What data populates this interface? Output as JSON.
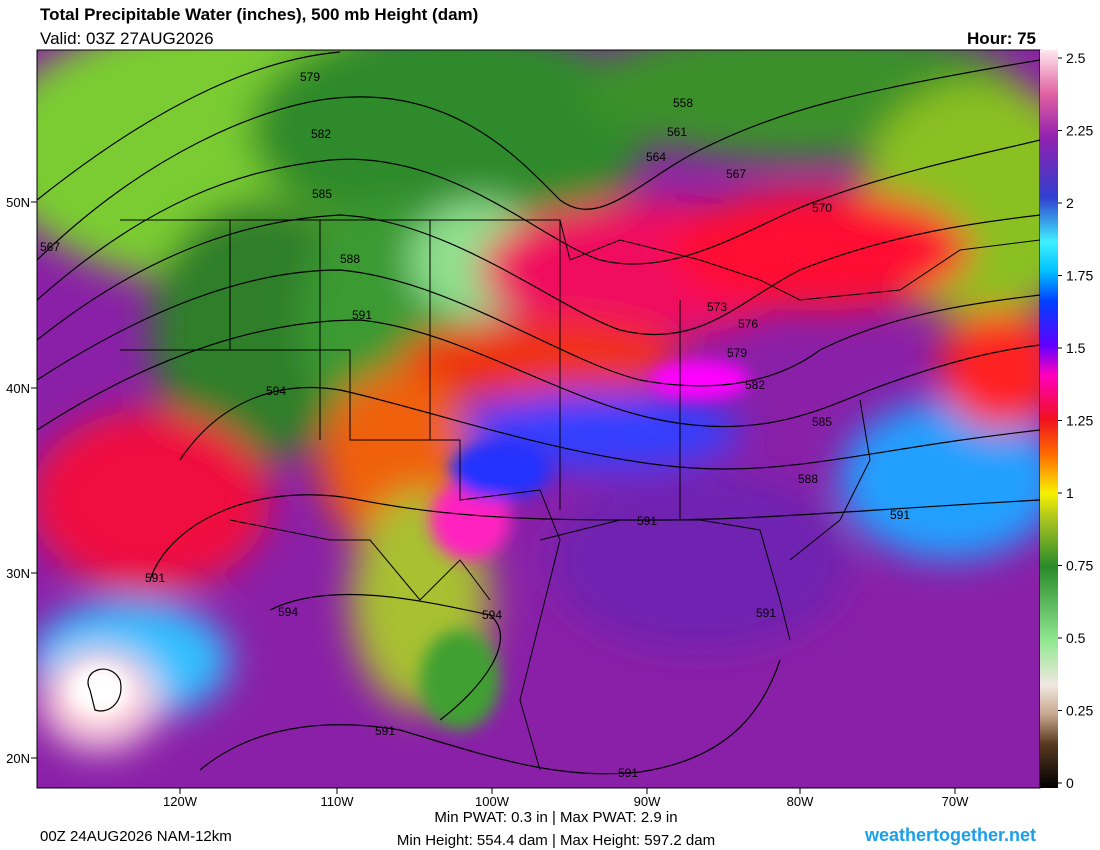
{
  "header": {
    "title": "Total Precipitable Water (inches), 500 mb Height (dam)",
    "valid": "Valid: 03Z 27AUG2026",
    "hour": "Hour: 75"
  },
  "colorbar": {
    "ticks": [
      0,
      0.25,
      0.5,
      0.75,
      1,
      1.25,
      1.5,
      1.75,
      2,
      2.25,
      2.5
    ]
  },
  "map": {
    "lat_labels": [
      "50N",
      "40N",
      "30N",
      "20N"
    ],
    "lon_labels": [
      "120W",
      "110W",
      "100W",
      "90W",
      "80W",
      "70W"
    ],
    "contour_labels": [
      "579",
      "582",
      "585",
      "588",
      "591",
      "594",
      "558",
      "561",
      "564",
      "567",
      "570",
      "567",
      "573",
      "576",
      "579",
      "582",
      "585",
      "588",
      "591",
      "591",
      "591",
      "594",
      "594",
      "591",
      "591",
      "591"
    ]
  },
  "footer": {
    "run": "00Z 24AUG2026 NAM-12km",
    "pwat": "Min PWAT:   0.3 in | Max PWAT:   2.9 in",
    "height": "Min Height: 554.4 dam | Max Height: 597.2 dam",
    "site": "weathertogether.net"
  }
}
